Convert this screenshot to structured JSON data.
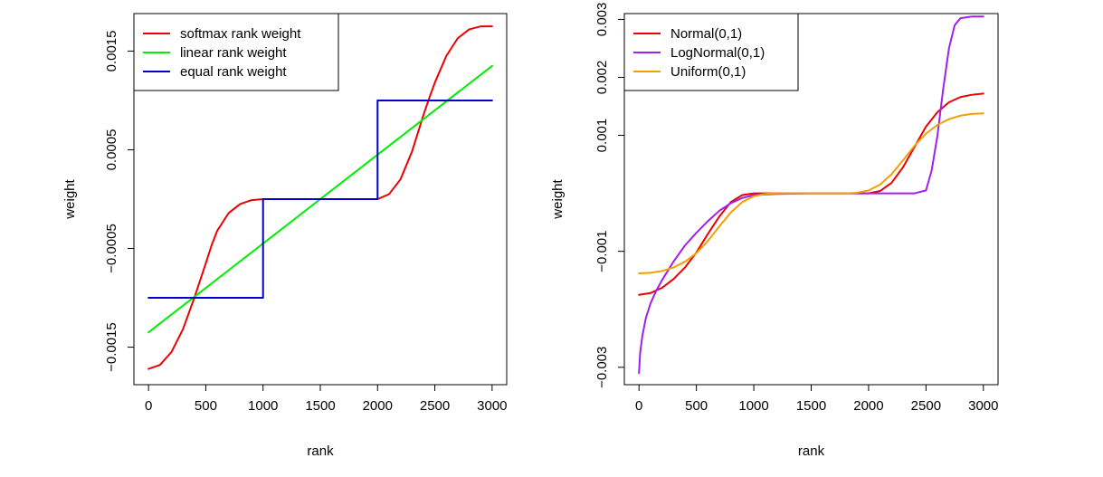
{
  "chart_data": [
    {
      "type": "line",
      "xlabel": "rank",
      "ylabel": "weight",
      "xlim": [
        0,
        3000
      ],
      "ylim": [
        -0.00188,
        0.00188
      ],
      "x_ticks": [
        0,
        500,
        1000,
        1500,
        2000,
        2500,
        3000
      ],
      "x_tick_labels": [
        "0",
        "500",
        "1000",
        "1500",
        "2000",
        "2500",
        "3000"
      ],
      "y_ticks": [
        -0.0015,
        -0.0005,
        0.0005,
        0.0015
      ],
      "y_tick_labels": [
        "−0.0015",
        "−0.0005",
        "0.0005",
        "0.0015"
      ],
      "grid": false,
      "legend_position": "top-left",
      "series": [
        {
          "name": "softmax rank weight",
          "color": "#ee0000",
          "x": [
            0,
            100,
            200,
            300,
            400,
            500,
            550,
            600,
            700,
            800,
            900,
            1000,
            1500,
            2000,
            2100,
            2200,
            2300,
            2400,
            2450,
            2500,
            2600,
            2700,
            2800,
            2900,
            3000
          ],
          "y": [
            -0.00172,
            -0.00168,
            -0.00155,
            -0.00132,
            -0.001,
            -0.00065,
            -0.00047,
            -0.00032,
            -0.00014,
            -5e-05,
            -1e-05,
            0,
            0,
            0,
            5e-05,
            0.0002,
            0.00048,
            0.00085,
            0.00102,
            0.00118,
            0.00145,
            0.00163,
            0.00172,
            0.00175,
            0.00175
          ]
        },
        {
          "name": "linear rank weight",
          "color": "#00ee00",
          "x": [
            0,
            3000
          ],
          "y": [
            -0.00135,
            0.00135
          ]
        },
        {
          "name": "equal rank weight",
          "color": "#0000cc",
          "x": [
            0,
            1000,
            1000,
            2000,
            2000,
            3000
          ],
          "y": [
            -0.001,
            -0.001,
            0,
            0,
            0.001,
            0.001
          ]
        }
      ]
    },
    {
      "type": "line",
      "xlabel": "rank",
      "ylabel": "weight",
      "xlim": [
        0,
        3000
      ],
      "ylim": [
        -0.0033,
        0.0031
      ],
      "x_ticks": [
        0,
        500,
        1000,
        1500,
        2000,
        2500,
        3000
      ],
      "x_tick_labels": [
        "0",
        "500",
        "1000",
        "1500",
        "2000",
        "2500",
        "3000"
      ],
      "y_ticks": [
        -0.003,
        -0.001,
        0.001,
        0.002,
        0.003
      ],
      "y_tick_labels": [
        "−0.003",
        "−0.001",
        "0.001",
        "0.002",
        "0.003"
      ],
      "grid": false,
      "legend_position": "top-left",
      "series": [
        {
          "name": "Normal(0,1)",
          "color": "#ee0000",
          "x": [
            0,
            100,
            200,
            300,
            400,
            500,
            600,
            700,
            800,
            900,
            1000,
            1500,
            2000,
            2100,
            2200,
            2300,
            2400,
            2500,
            2600,
            2700,
            2800,
            2900,
            3000
          ],
          "y": [
            -0.00175,
            -0.00172,
            -0.00163,
            -0.00148,
            -0.00128,
            -0.00102,
            -0.0007,
            -0.0004,
            -0.00015,
            -3e-05,
            0,
            0,
            0,
            4e-05,
            0.00018,
            0.00045,
            0.0008,
            0.00115,
            0.0014,
            0.00157,
            0.00166,
            0.0017,
            0.00172
          ]
        },
        {
          "name": "LogNormal(0,1)",
          "color": "#a020f0",
          "x": [
            0,
            10,
            30,
            60,
            100,
            150,
            200,
            300,
            400,
            500,
            600,
            700,
            800,
            900,
            1000,
            1200,
            1500,
            2000,
            2400,
            2500,
            2550,
            2600,
            2650,
            2700,
            2750,
            2800,
            2900,
            3000
          ],
          "y": [
            -0.0031,
            -0.00275,
            -0.00245,
            -0.00215,
            -0.0019,
            -0.00168,
            -0.0015,
            -0.00118,
            -0.0009,
            -0.00068,
            -0.00048,
            -0.0003,
            -0.00017,
            -8e-05,
            -3e-05,
            -1e-05,
            0,
            0,
            0,
            5e-05,
            0.0004,
            0.001,
            0.0018,
            0.0025,
            0.0029,
            0.00302,
            0.00305,
            0.00305
          ]
        },
        {
          "name": "Uniform(0,1)",
          "color": "#f0a000",
          "x": [
            0,
            100,
            200,
            300,
            400,
            500,
            600,
            700,
            800,
            900,
            1000,
            1100,
            1200,
            1500,
            1800,
            1900,
            2000,
            2100,
            2200,
            2300,
            2400,
            2500,
            2600,
            2700,
            2800,
            2900,
            3000
          ],
          "y": [
            -0.00138,
            -0.00137,
            -0.00134,
            -0.00128,
            -0.00118,
            -0.00103,
            -0.00082,
            -0.00057,
            -0.00033,
            -0.00015,
            -5e-05,
            -1e-05,
            0,
            0,
            0,
            1e-05,
            5e-05,
            0.00015,
            0.00033,
            0.00057,
            0.00082,
            0.00103,
            0.00118,
            0.00128,
            0.00134,
            0.00137,
            0.00138
          ]
        }
      ]
    }
  ]
}
